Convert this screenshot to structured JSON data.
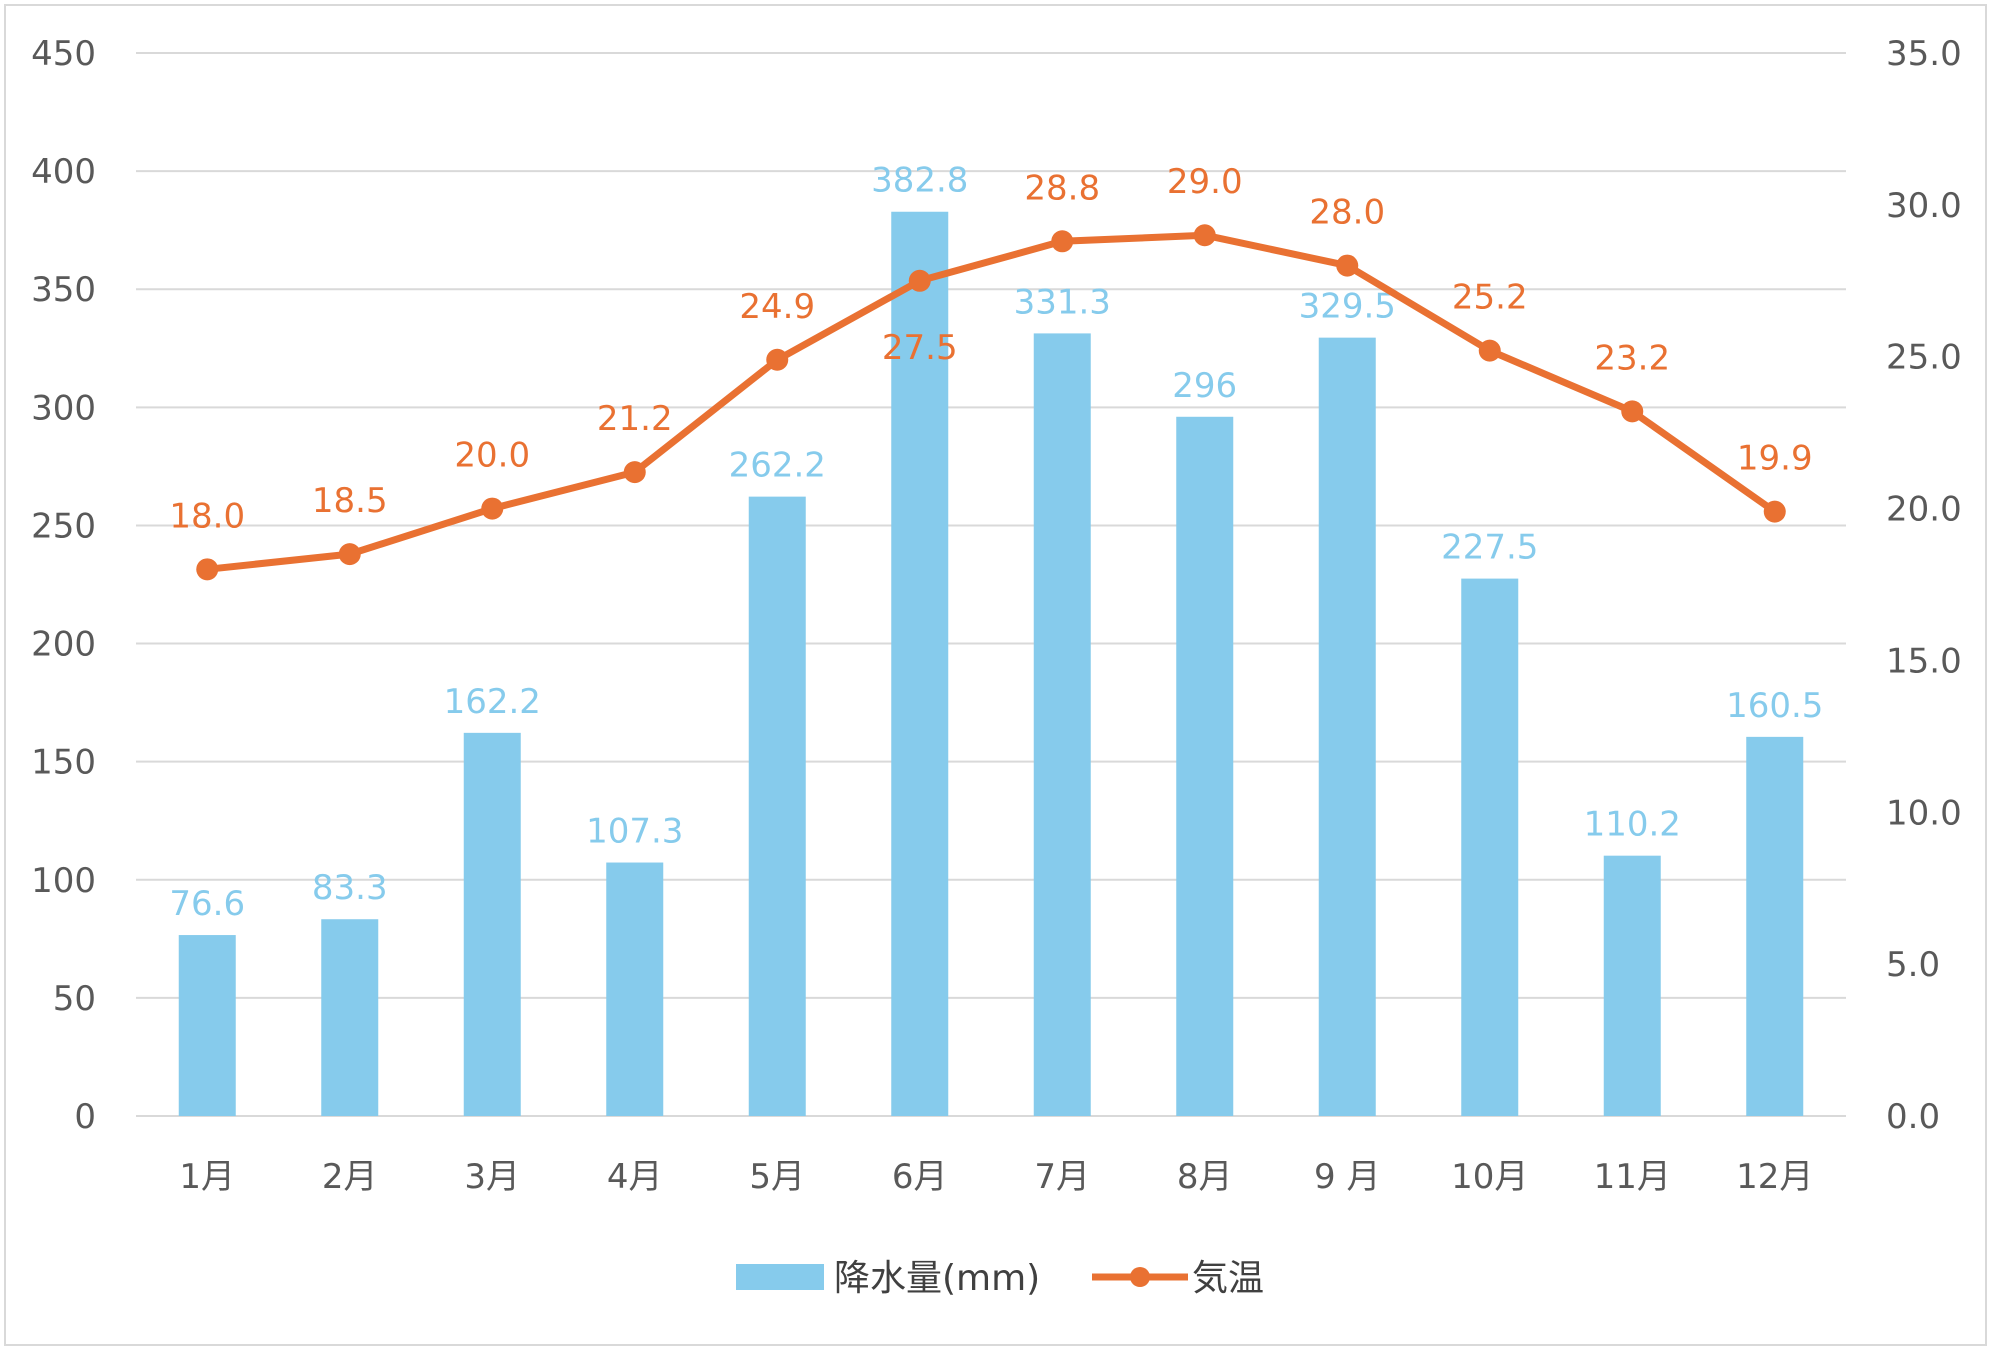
{
  "chart_data": {
    "type": "bar",
    "categories": [
      "1月",
      "2月",
      "3月",
      "4月",
      "5月",
      "6月",
      "7月",
      "8月",
      "9 月",
      "10月",
      "11月",
      "12月"
    ],
    "series": [
      {
        "name": "降水量(mm)",
        "type": "bar",
        "axis": "left",
        "color": "#86cbec",
        "values": [
          76.6,
          83.3,
          162.2,
          107.3,
          262.2,
          382.8,
          331.3,
          296,
          329.5,
          227.5,
          110.2,
          160.5
        ],
        "labels": [
          "76.6",
          "83.3",
          "162.2",
          "107.3",
          "262.2",
          "382.8",
          "331.3",
          "296",
          "329.5",
          "227.5",
          "110.2",
          "160.5"
        ]
      },
      {
        "name": "気温",
        "type": "line",
        "axis": "right",
        "color": "#e97132",
        "values": [
          18.0,
          18.5,
          20.0,
          21.2,
          24.9,
          27.5,
          28.8,
          29.0,
          28.0,
          25.2,
          23.2,
          19.9
        ],
        "labels": [
          "18.0",
          "18.5",
          "20.0",
          "21.2",
          "24.9",
          "27.5",
          "28.8",
          "29.0",
          "28.0",
          "25.2",
          "23.2",
          "19.9"
        ]
      }
    ],
    "ylim": [
      0,
      450
    ],
    "yticks": [
      "0",
      "50",
      "100",
      "150",
      "200",
      "250",
      "300",
      "350",
      "400",
      "450"
    ],
    "y2lim": [
      0,
      35
    ],
    "y2ticks": [
      "0.0",
      "5.0",
      "10.0",
      "15.0",
      "20.0",
      "25.0",
      "30.0",
      "35.0"
    ],
    "grid": true,
    "legend_position": "bottom"
  }
}
